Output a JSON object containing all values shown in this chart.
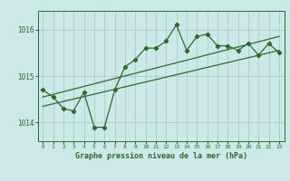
{
  "title": "Graphe pression niveau de la mer (hPa)",
  "background_color": "#cce8e8",
  "grid_color": "#aacccc",
  "line_color": "#2d6a2d",
  "x_values": [
    0,
    1,
    2,
    3,
    4,
    5,
    6,
    7,
    8,
    9,
    10,
    11,
    12,
    13,
    14,
    15,
    16,
    17,
    18,
    19,
    20,
    21,
    22,
    23
  ],
  "main_series": [
    1014.7,
    1014.55,
    1014.3,
    1014.25,
    1014.65,
    1013.9,
    1013.9,
    1014.7,
    1015.2,
    1015.35,
    1015.6,
    1015.6,
    1015.75,
    1016.1,
    1015.55,
    1015.85,
    1015.9,
    1015.65,
    1015.65,
    1015.55,
    1015.7,
    1015.45,
    1015.7,
    1015.5
  ],
  "trend1_x": [
    0,
    23
  ],
  "trend1_y": [
    1014.55,
    1015.85
  ],
  "trend2_x": [
    0,
    23
  ],
  "trend2_y": [
    1014.35,
    1015.55
  ],
  "ylim": [
    1013.6,
    1016.4
  ],
  "yticks": [
    1014,
    1015,
    1016
  ],
  "xlim": [
    -0.5,
    23.5
  ]
}
